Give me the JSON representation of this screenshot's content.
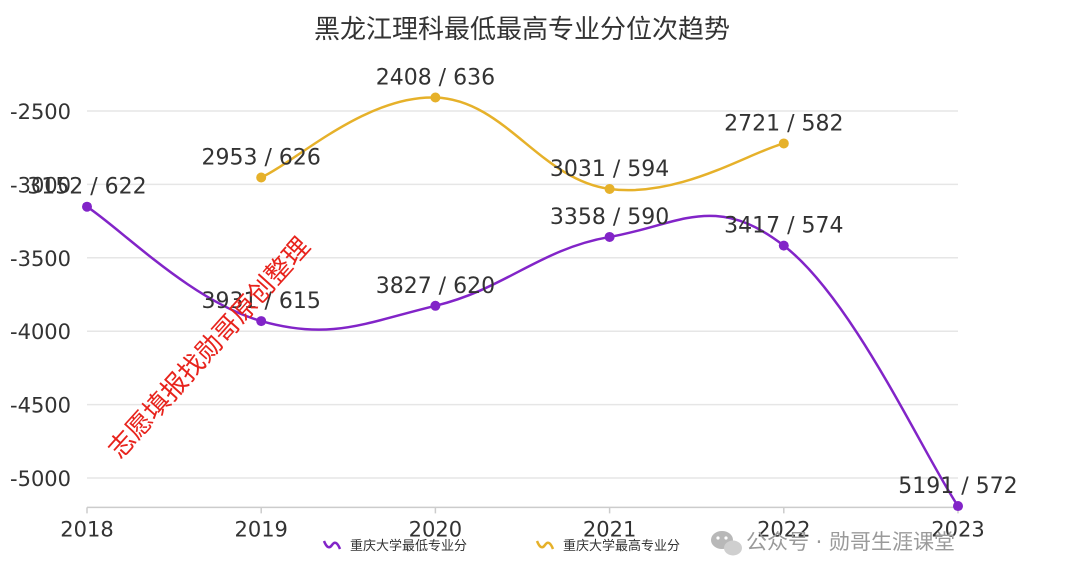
{
  "chart_data": {
    "type": "line",
    "title": "黑龙江理科最低最高专业分位次趋势",
    "categories": [
      "2018",
      "2019",
      "2020",
      "2021",
      "2022",
      "2023"
    ],
    "ylim": [
      -5200,
      -2300
    ],
    "yticks": [
      -2500,
      -3000,
      -3500,
      -4000,
      -4500,
      -5000
    ],
    "ytick_labels": [
      "-2500",
      "-3000",
      "-3500",
      "-4000",
      "-4500",
      "-5000"
    ],
    "grid": true,
    "legend_position": "bottom",
    "series": [
      {
        "name": "重庆大学最低专业分",
        "color": "#8224c8",
        "values": [
          -3152,
          -3931,
          -3827,
          -3358,
          -3417,
          -5191
        ],
        "labels": [
          "3152 / 622",
          "3931 / 615",
          "3827 / 620",
          "3358 / 590",
          "3417 / 574",
          "5191 / 572"
        ]
      },
      {
        "name": "重庆大学最高专业分",
        "color": "#e6b12a",
        "values": [
          null,
          -2953,
          -2408,
          -3031,
          -2721,
          null
        ],
        "labels": [
          "",
          "2953 / 626",
          "2408 / 636",
          "3031 / 594",
          "2721 / 582",
          ""
        ]
      }
    ]
  },
  "watermark": "志愿填报找勋哥原创整理",
  "footer": {
    "icon": "wechat-icon",
    "text": "公众号 · 勋哥生涯课堂"
  }
}
